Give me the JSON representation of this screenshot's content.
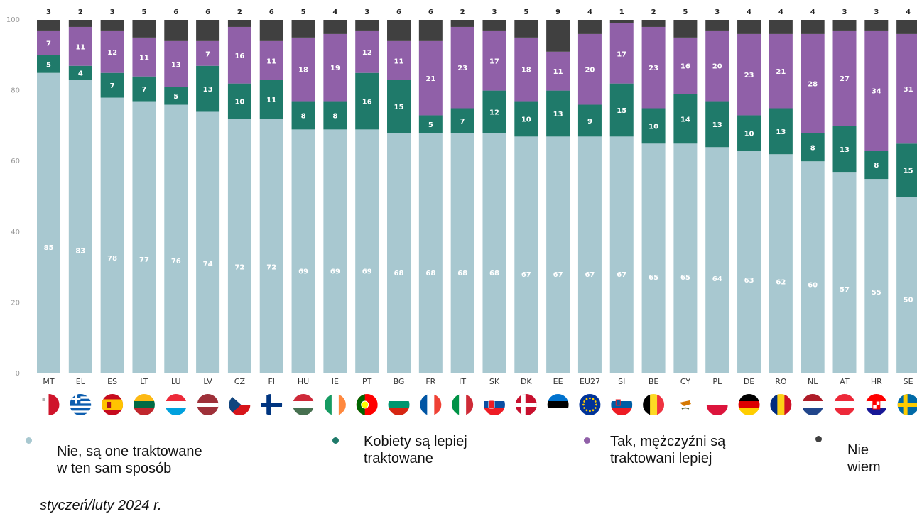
{
  "chart_data": {
    "type": "bar",
    "stacked": true,
    "ylim": [
      0,
      100
    ],
    "yticks": [
      0,
      20,
      40,
      60,
      80,
      100
    ],
    "grid": false,
    "legend_position": "bottom",
    "categories": [
      "MT",
      "EL",
      "ES",
      "LT",
      "LU",
      "LV",
      "CZ",
      "FI",
      "HU",
      "IE",
      "PT",
      "BG",
      "FR",
      "IT",
      "SK",
      "DK",
      "EE",
      "EU27",
      "SI",
      "BE",
      "CY",
      "PL",
      "DE",
      "RO",
      "NL",
      "AT",
      "HR",
      "SE"
    ],
    "series": [
      {
        "name": "Nie, są one traktowane w ten sam sposób",
        "color": "#a8c8d0",
        "label_color": "#ffffff",
        "values": [
          85,
          83,
          78,
          77,
          76,
          74,
          72,
          72,
          69,
          69,
          69,
          68,
          68,
          68,
          68,
          67,
          67,
          67,
          67,
          65,
          65,
          64,
          63,
          62,
          60,
          57,
          55,
          50
        ]
      },
      {
        "name": "Kobiety są lepiej traktowane",
        "color": "#1f7a6a",
        "label_color": "#ffffff",
        "values": [
          5,
          4,
          7,
          7,
          5,
          13,
          10,
          11,
          8,
          8,
          16,
          15,
          5,
          7,
          12,
          10,
          13,
          9,
          15,
          10,
          14,
          13,
          10,
          13,
          8,
          13,
          8,
          15
        ]
      },
      {
        "name": "Tak, mężczyźni są traktowani lepiej",
        "color": "#9060a8",
        "label_color": "#ffffff",
        "values": [
          7,
          11,
          12,
          11,
          13,
          7,
          16,
          11,
          18,
          19,
          12,
          11,
          21,
          23,
          17,
          18,
          11,
          20,
          17,
          23,
          16,
          20,
          23,
          21,
          28,
          27,
          34,
          31
        ]
      },
      {
        "name": "Nie wiem",
        "color": "#404040",
        "label_color": "#222222",
        "values": [
          3,
          2,
          3,
          5,
          6,
          6,
          2,
          6,
          5,
          4,
          3,
          6,
          6,
          2,
          3,
          5,
          9,
          4,
          1,
          2,
          5,
          3,
          4,
          4,
          4,
          3,
          3,
          4
        ]
      }
    ]
  },
  "legend": [
    {
      "label": "Nie, są one traktowane w ten sam sposób",
      "color": "#a8c8d0"
    },
    {
      "label": "Kobiety są lepiej traktowane",
      "color": "#1f7a6a"
    },
    {
      "label": "Tak, mężczyźni są traktowani lepiej",
      "color": "#9060a8"
    },
    {
      "label": "Nie wiem",
      "color": "#404040"
    }
  ],
  "footnote": "styczeń/luty 2024 r.",
  "flags": {
    "icons": [
      "malta-flag-icon",
      "greece-flag-icon",
      "spain-flag-icon",
      "lithuania-flag-icon",
      "luxembourg-flag-icon",
      "latvia-flag-icon",
      "czechia-flag-icon",
      "finland-flag-icon",
      "hungary-flag-icon",
      "ireland-flag-icon",
      "portugal-flag-icon",
      "bulgaria-flag-icon",
      "france-flag-icon",
      "italy-flag-icon",
      "slovakia-flag-icon",
      "denmark-flag-icon",
      "estonia-flag-icon",
      "eu-flag-icon",
      "slovenia-flag-icon",
      "belgium-flag-icon",
      "cyprus-flag-icon",
      "poland-flag-icon",
      "germany-flag-icon",
      "romania-flag-icon",
      "netherlands-flag-icon",
      "austria-flag-icon",
      "croatia-flag-icon",
      "sweden-flag-icon"
    ]
  }
}
